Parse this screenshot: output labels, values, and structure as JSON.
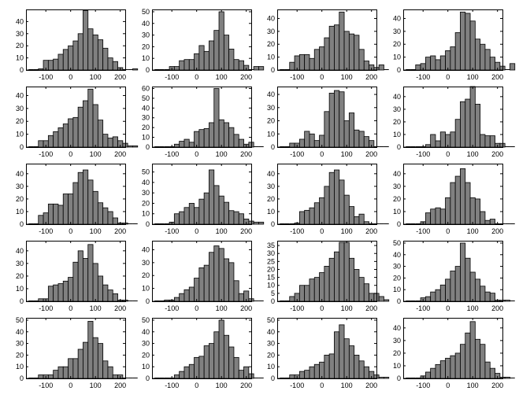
{
  "chart_data": [
    {
      "type": "bar",
      "bin_width": 20,
      "xlim": [
        -180,
        220
      ],
      "ylim": [
        0,
        50
      ],
      "xticks": [
        -100,
        0,
        100,
        200
      ],
      "yticks": [
        0,
        10,
        20,
        30,
        40
      ],
      "x_start": -170,
      "values": [
        0,
        0,
        1,
        8,
        8,
        9,
        13,
        17,
        20,
        24,
        30,
        49,
        34,
        29,
        25,
        18,
        10,
        7,
        2,
        0,
        0,
        1
      ]
    },
    {
      "type": "bar",
      "bin_width": 20,
      "xlim": [
        -180,
        220
      ],
      "ylim": [
        0,
        52
      ],
      "xticks": [
        -100,
        0,
        100,
        200
      ],
      "yticks": [
        0,
        10,
        20,
        30,
        40,
        50
      ],
      "x_start": -170,
      "values": [
        0,
        0,
        0,
        3,
        3,
        8,
        9,
        9,
        14,
        21,
        16,
        25,
        34,
        50,
        30,
        18,
        9,
        8,
        4,
        0,
        3,
        3
      ]
    },
    {
      "type": "bar",
      "bin_width": 20,
      "xlim": [
        -180,
        220
      ],
      "ylim": [
        0,
        47
      ],
      "xticks": [
        -100,
        0,
        100,
        200
      ],
      "yticks": [
        0,
        10,
        20,
        30,
        40
      ],
      "x_start": -170,
      "values": [
        0,
        0,
        6,
        11,
        12,
        12,
        9,
        16,
        18,
        25,
        34,
        35,
        45,
        30,
        28,
        27,
        16,
        7,
        4,
        2,
        4,
        0
      ]
    },
    {
      "type": "bar",
      "bin_width": 20,
      "xlim": [
        -180,
        220
      ],
      "ylim": [
        0,
        47
      ],
      "xticks": [
        -100,
        0,
        100,
        200
      ],
      "yticks": [
        0,
        10,
        20,
        30,
        40
      ],
      "x_start": -170,
      "values": [
        0,
        0,
        4,
        5,
        10,
        11,
        8,
        11,
        15,
        18,
        29,
        45,
        44,
        38,
        24,
        20,
        16,
        10,
        6,
        3,
        0,
        5
      ]
    },
    {
      "type": "bar",
      "bin_width": 20,
      "xlim": [
        -180,
        220
      ],
      "ylim": [
        0,
        47
      ],
      "xticks": [
        -100,
        0,
        100,
        200
      ],
      "yticks": [
        0,
        10,
        20,
        30,
        40
      ],
      "x_start": -170,
      "values": [
        0,
        0,
        5,
        5,
        9,
        12,
        15,
        18,
        22,
        23,
        31,
        36,
        45,
        33,
        21,
        10,
        7,
        8,
        5,
        3,
        1,
        1
      ]
    },
    {
      "type": "bar",
      "bin_width": 20,
      "xlim": [
        -180,
        220
      ],
      "ylim": [
        0,
        62
      ],
      "xticks": [
        -100,
        0,
        100,
        200
      ],
      "yticks": [
        0,
        10,
        20,
        30,
        40,
        50,
        60
      ],
      "x_start": -170,
      "values": [
        0,
        0,
        0,
        0,
        3,
        6,
        8,
        5,
        16,
        18,
        19,
        25,
        60,
        28,
        25,
        20,
        13,
        8,
        3,
        5,
        0,
        0
      ]
    },
    {
      "type": "bar",
      "bin_width": 20,
      "xlim": [
        -180,
        220
      ],
      "ylim": [
        0,
        46
      ],
      "xticks": [
        -100,
        0,
        100,
        200
      ],
      "yticks": [
        0,
        10,
        20,
        30,
        40
      ],
      "x_start": -170,
      "values": [
        0,
        0,
        3,
        3,
        6,
        12,
        10,
        5,
        9,
        27,
        41,
        43,
        42,
        20,
        26,
        13,
        12,
        8,
        5,
        0,
        0,
        0
      ]
    },
    {
      "type": "bar",
      "bin_width": 20,
      "xlim": [
        -180,
        220
      ],
      "ylim": [
        0,
        48
      ],
      "xticks": [
        -100,
        0,
        100,
        200
      ],
      "yticks": [
        0,
        10,
        20,
        30,
        40
      ],
      "x_start": -170,
      "values": [
        0,
        0,
        0,
        0,
        2,
        10,
        5,
        12,
        10,
        12,
        22,
        36,
        38,
        48,
        34,
        10,
        9,
        9,
        3,
        3,
        0,
        0
      ]
    },
    {
      "type": "bar",
      "bin_width": 20,
      "xlim": [
        -180,
        220
      ],
      "ylim": [
        0,
        48
      ],
      "xticks": [
        -100,
        0,
        100,
        200
      ],
      "yticks": [
        0,
        10,
        20,
        30,
        40
      ],
      "x_start": -170,
      "values": [
        0,
        0,
        7,
        9,
        16,
        16,
        15,
        24,
        24,
        33,
        41,
        43,
        35,
        26,
        17,
        13,
        10,
        5,
        1,
        1,
        0,
        0
      ]
    },
    {
      "type": "bar",
      "bin_width": 20,
      "xlim": [
        -180,
        220
      ],
      "ylim": [
        0,
        58
      ],
      "xticks": [
        -100,
        0,
        100,
        200
      ],
      "yticks": [
        0,
        10,
        20,
        30,
        40,
        50
      ],
      "x_start": -170,
      "values": [
        0,
        0,
        0,
        2,
        10,
        12,
        16,
        20,
        16,
        24,
        30,
        52,
        37,
        27,
        21,
        13,
        12,
        10,
        5,
        3,
        2,
        2
      ]
    },
    {
      "type": "bar",
      "bin_width": 20,
      "xlim": [
        -180,
        220
      ],
      "ylim": [
        0,
        48
      ],
      "xticks": [
        -100,
        0,
        100,
        200
      ],
      "yticks": [
        0,
        10,
        20,
        30,
        40
      ],
      "x_start": -170,
      "values": [
        0,
        0,
        0,
        1,
        10,
        11,
        13,
        17,
        21,
        30,
        41,
        43,
        35,
        23,
        14,
        6,
        8,
        2,
        0,
        0,
        0,
        0
      ]
    },
    {
      "type": "bar",
      "bin_width": 20,
      "xlim": [
        -180,
        220
      ],
      "ylim": [
        0,
        48
      ],
      "xticks": [
        -100,
        0,
        100,
        200
      ],
      "yticks": [
        0,
        10,
        20,
        30,
        40
      ],
      "x_start": -170,
      "values": [
        0,
        0,
        0,
        2,
        9,
        12,
        13,
        12,
        21,
        33,
        38,
        44,
        33,
        21,
        20,
        10,
        3,
        4,
        0,
        0,
        0,
        0
      ]
    },
    {
      "type": "bar",
      "bin_width": 20,
      "xlim": [
        -180,
        220
      ],
      "ylim": [
        0,
        48
      ],
      "xticks": [
        -100,
        0,
        100,
        200
      ],
      "yticks": [
        0,
        10,
        20,
        30,
        40
      ],
      "x_start": -170,
      "values": [
        0,
        0,
        2,
        2,
        12,
        13,
        14,
        16,
        19,
        31,
        40,
        34,
        45,
        30,
        20,
        13,
        9,
        6,
        1,
        1,
        0,
        0
      ]
    },
    {
      "type": "bar",
      "bin_width": 20,
      "xlim": [
        -180,
        220
      ],
      "ylim": [
        0,
        47
      ],
      "xticks": [
        -100,
        0,
        100,
        200
      ],
      "yticks": [
        0,
        10,
        20,
        30,
        40
      ],
      "x_start": -170,
      "values": [
        0,
        0,
        1,
        1,
        3,
        6,
        9,
        11,
        18,
        26,
        28,
        38,
        43,
        41,
        33,
        30,
        16,
        6,
        8,
        2,
        0,
        0
      ]
    },
    {
      "type": "bar",
      "bin_width": 20,
      "xlim": [
        -180,
        220
      ],
      "ylim": [
        0,
        38
      ],
      "xticks": [
        -100,
        0,
        100,
        200
      ],
      "yticks": [
        0,
        5,
        10,
        15,
        20,
        25,
        30,
        35
      ],
      "x_start": -170,
      "values": [
        0,
        0,
        3,
        5,
        10,
        10,
        14,
        15,
        18,
        22,
        27,
        31,
        37,
        37,
        27,
        20,
        15,
        11,
        5,
        5,
        3,
        1
      ]
    },
    {
      "type": "bar",
      "bin_width": 20,
      "xlim": [
        -180,
        220
      ],
      "ylim": [
        0,
        52
      ],
      "xticks": [
        -100,
        0,
        100,
        200
      ],
      "yticks": [
        0,
        10,
        20,
        30,
        40,
        50
      ],
      "x_start": -170,
      "values": [
        0,
        0,
        0,
        3,
        4,
        8,
        10,
        14,
        19,
        26,
        30,
        50,
        37,
        25,
        19,
        13,
        8,
        7,
        1,
        1,
        1,
        0
      ]
    },
    {
      "type": "bar",
      "bin_width": 20,
      "xlim": [
        -180,
        220
      ],
      "ylim": [
        0,
        52
      ],
      "xticks": [
        -100,
        0,
        100,
        200
      ],
      "yticks": [
        0,
        10,
        20,
        30,
        40,
        50
      ],
      "x_start": -170,
      "values": [
        0,
        0,
        3,
        3,
        3,
        7,
        10,
        10,
        17,
        17,
        25,
        31,
        49,
        35,
        30,
        15,
        10,
        3,
        3,
        0,
        0,
        0
      ]
    },
    {
      "type": "bar",
      "bin_width": 20,
      "xlim": [
        -180,
        220
      ],
      "ylim": [
        0,
        52
      ],
      "xticks": [
        -100,
        0,
        100,
        200
      ],
      "yticks": [
        0,
        10,
        20,
        30,
        40,
        50
      ],
      "x_start": -170,
      "values": [
        0,
        0,
        0,
        0,
        3,
        6,
        10,
        12,
        18,
        19,
        28,
        30,
        40,
        50,
        37,
        27,
        18,
        7,
        10,
        4,
        0,
        0
      ]
    },
    {
      "type": "bar",
      "bin_width": 20,
      "xlim": [
        -180,
        220
      ],
      "ylim": [
        0,
        52
      ],
      "xticks": [
        -100,
        0,
        100,
        200
      ],
      "yticks": [
        0,
        10,
        20,
        30,
        40,
        50
      ],
      "x_start": -170,
      "values": [
        0,
        0,
        3,
        3,
        6,
        7,
        10,
        12,
        14,
        20,
        21,
        40,
        46,
        34,
        28,
        20,
        15,
        10,
        6,
        3,
        1,
        1
      ]
    },
    {
      "type": "bar",
      "bin_width": 20,
      "xlim": [
        -180,
        220
      ],
      "ylim": [
        0,
        48
      ],
      "xticks": [
        -100,
        0,
        100,
        200
      ],
      "yticks": [
        0,
        10,
        20,
        30,
        40
      ],
      "x_start": -170,
      "values": [
        0,
        0,
        0,
        2,
        5,
        8,
        11,
        14,
        16,
        18,
        20,
        27,
        36,
        45,
        31,
        27,
        13,
        8,
        4,
        1,
        1,
        0
      ]
    }
  ]
}
